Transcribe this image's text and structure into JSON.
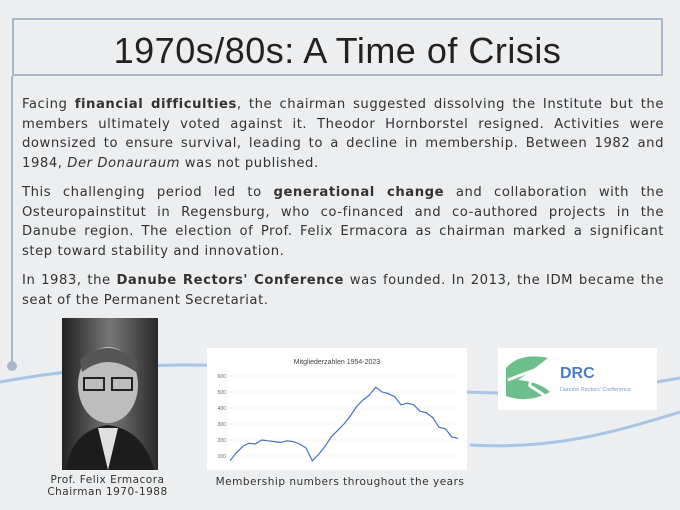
{
  "title": "1970s/80s: A Time of Crisis",
  "paragraphs": [
    [
      "Facing ",
      "financial difficulties",
      ", the chairman suggested dissolving the Institute but the members ultimately voted against it. Theodor Hornborstel resigned. Activities were downsized to ensure survival, leading to a decline in membership. Between 1982 and 1984, ",
      "Der Donauraum",
      " was not published."
    ],
    [
      "This challenging period led to ",
      "generational change",
      " and collaboration with the Osteuropainstitut in Regensburg, who co-financed and co-authored projects in the Danube region. The election of Prof. Felix Ermacora as chairman marked a significant step toward stability and innovation."
    ],
    [
      "In 1983, the ",
      "Danube Rectors' Conference",
      " was founded. In 2013, the IDM became the seat of the Permanent Secretariat."
    ]
  ],
  "photo_caption": [
    "Prof. Felix Ermacora",
    "Chairman 1970-1988"
  ],
  "membership_chart": {
    "type": "line",
    "title": "Mitgliederzahlen 1954-2023",
    "color": "#4472c4",
    "values": [
      70,
      120,
      160,
      180,
      175,
      200,
      195,
      190,
      185,
      195,
      190,
      175,
      150,
      70,
      110,
      160,
      220,
      260,
      300,
      350,
      410,
      450,
      480,
      530,
      500,
      490,
      470,
      420,
      430,
      420,
      380,
      370,
      340,
      280,
      270,
      220,
      210
    ],
    "ylim": [
      0,
      600
    ],
    "yticks": [
      100,
      200,
      300,
      400,
      500,
      600
    ]
  },
  "chart_caption": "Membership numbers throughout the years",
  "logo": {
    "acronym": "DRC",
    "name": "Danube Rectors' Conference"
  }
}
